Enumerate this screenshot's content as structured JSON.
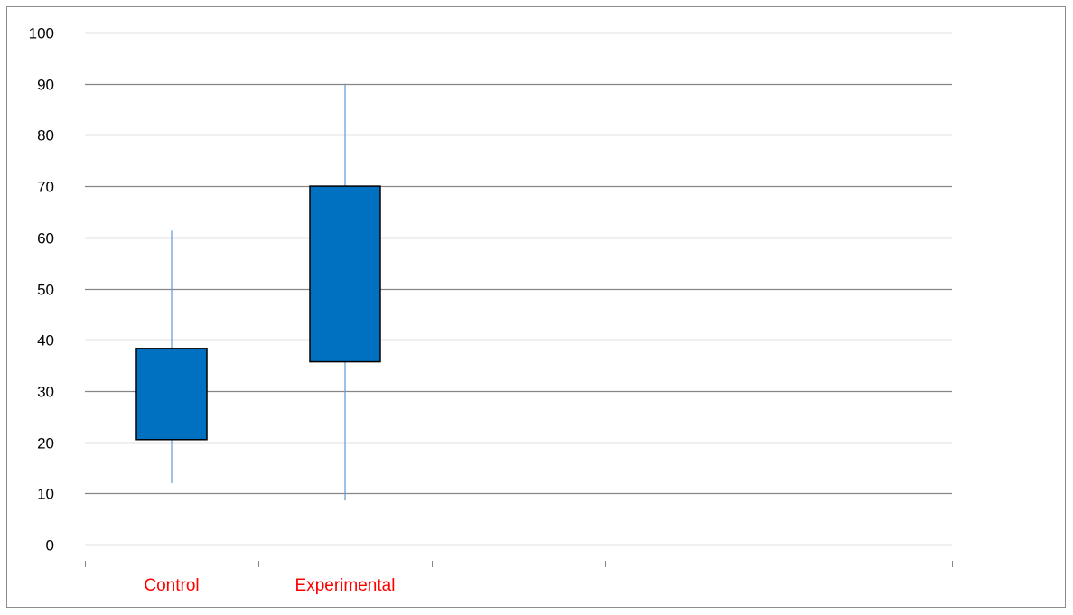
{
  "chart_data": {
    "type": "box",
    "title": "",
    "xlabel": "",
    "ylabel": "",
    "ylim": [
      0,
      100
    ],
    "y_ticks": [
      0,
      10,
      20,
      30,
      40,
      50,
      60,
      70,
      80,
      90,
      100
    ],
    "y_tick_labels": [
      "0",
      "10",
      "20",
      "30",
      "40",
      "50",
      "60",
      "70",
      "80",
      "90",
      "100"
    ],
    "gridlines": true,
    "legend": "none",
    "x_slot_count": 5,
    "categories": [
      "Control",
      "Experimental"
    ],
    "boxes": [
      {
        "category": "Control",
        "min": 12,
        "q1": 20.5,
        "q3": 38.3,
        "max": 61.3
      },
      {
        "category": "Experimental",
        "min": 8.6,
        "q1": 35.7,
        "q3": 70,
        "max": 90
      }
    ],
    "colors": {
      "box_fill": "#0070C0",
      "box_stroke": "#000000",
      "whisker": "#5B9BD5",
      "gridline": "#868686",
      "category_label": "#FF0000",
      "tick_label": "#000000"
    }
  }
}
